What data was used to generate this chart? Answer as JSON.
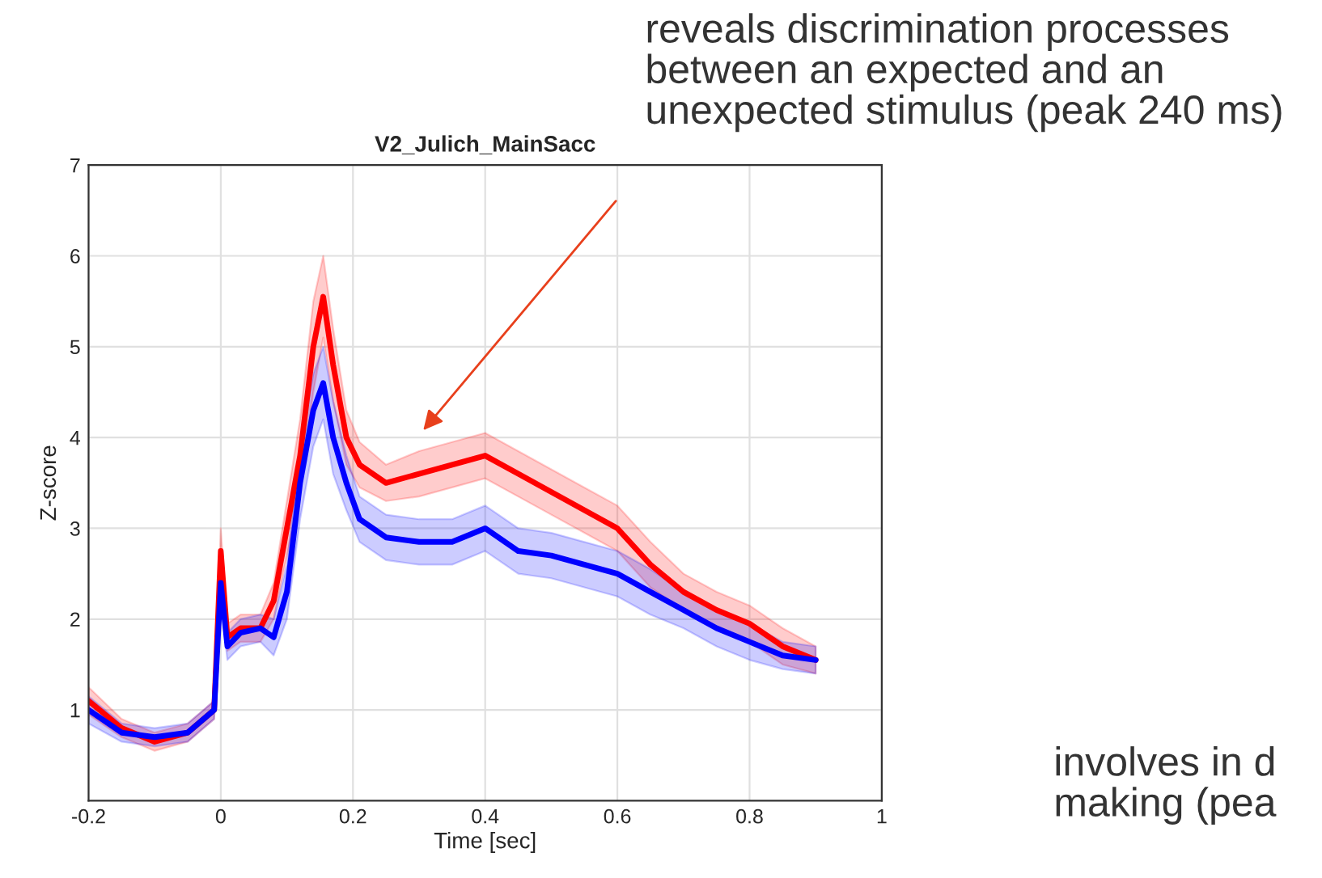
{
  "chart_data": {
    "type": "line",
    "title": "V2_Julich_MainSacc",
    "xlabel": "Time [sec]",
    "ylabel": "Z-score",
    "xlim": [
      -0.2,
      1.0
    ],
    "xticks": [
      -0.2,
      0,
      0.2,
      0.4,
      0.6,
      0.8,
      1
    ],
    "ylim": [
      0,
      7
    ],
    "yticks": [
      1,
      2,
      3,
      4,
      5,
      6,
      7
    ],
    "grid": true,
    "legend": false,
    "x": [
      -0.2,
      -0.15,
      -0.1,
      -0.05,
      -0.01,
      0,
      0.01,
      0.03,
      0.06,
      0.08,
      0.1,
      0.12,
      0.14,
      0.155,
      0.17,
      0.19,
      0.21,
      0.25,
      0.3,
      0.35,
      0.4,
      0.45,
      0.5,
      0.55,
      0.6,
      0.65,
      0.7,
      0.75,
      0.8,
      0.85,
      0.9
    ],
    "series": [
      {
        "color": "#ff0000",
        "values": [
          1.1,
          0.8,
          0.65,
          0.75,
          1.0,
          2.75,
          1.8,
          1.9,
          1.9,
          2.2,
          3.0,
          3.8,
          5.0,
          5.55,
          4.8,
          4.0,
          3.7,
          3.5,
          3.6,
          3.7,
          3.8,
          3.6,
          3.4,
          3.2,
          3.0,
          2.6,
          2.3,
          2.1,
          1.95,
          1.7,
          1.55
        ],
        "lower": [
          0.95,
          0.7,
          0.55,
          0.65,
          0.9,
          2.5,
          1.65,
          1.75,
          1.75,
          2.0,
          2.7,
          3.4,
          4.5,
          5.1,
          4.4,
          3.7,
          3.45,
          3.3,
          3.35,
          3.45,
          3.55,
          3.35,
          3.15,
          2.95,
          2.75,
          2.35,
          2.1,
          1.9,
          1.75,
          1.5,
          1.4
        ],
        "upper": [
          1.25,
          0.9,
          0.75,
          0.85,
          1.1,
          3.0,
          1.95,
          2.05,
          2.05,
          2.4,
          3.3,
          4.2,
          5.5,
          6.0,
          5.2,
          4.3,
          3.95,
          3.7,
          3.85,
          3.95,
          4.05,
          3.85,
          3.65,
          3.45,
          3.25,
          2.85,
          2.5,
          2.3,
          2.15,
          1.9,
          1.7
        ]
      },
      {
        "color": "#0000ff",
        "values": [
          1.0,
          0.75,
          0.7,
          0.75,
          1.0,
          2.4,
          1.7,
          1.85,
          1.9,
          1.8,
          2.3,
          3.5,
          4.3,
          4.6,
          4.0,
          3.5,
          3.1,
          2.9,
          2.85,
          2.85,
          3.0,
          2.75,
          2.7,
          2.6,
          2.5,
          2.3,
          2.1,
          1.9,
          1.75,
          1.6,
          1.55
        ],
        "lower": [
          0.85,
          0.65,
          0.6,
          0.65,
          0.9,
          2.2,
          1.55,
          1.7,
          1.75,
          1.6,
          2.0,
          3.1,
          3.9,
          4.2,
          3.6,
          3.2,
          2.85,
          2.65,
          2.6,
          2.6,
          2.75,
          2.5,
          2.45,
          2.35,
          2.25,
          2.05,
          1.9,
          1.7,
          1.55,
          1.45,
          1.4
        ],
        "upper": [
          1.15,
          0.85,
          0.8,
          0.85,
          1.1,
          2.6,
          1.85,
          2.0,
          2.05,
          2.0,
          2.6,
          3.9,
          4.7,
          5.0,
          4.4,
          3.8,
          3.35,
          3.15,
          3.1,
          3.1,
          3.25,
          3.0,
          2.95,
          2.85,
          2.75,
          2.55,
          2.3,
          2.1,
          1.95,
          1.75,
          1.7
        ]
      }
    ],
    "annotations": [
      "reveals discrimination processes between an expected and an unexpected stimulus (peak 240 ms)",
      "involves in d making (pea"
    ]
  }
}
